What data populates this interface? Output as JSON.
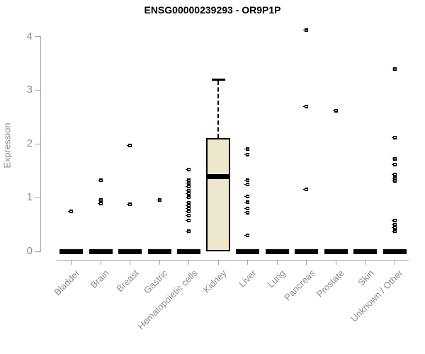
{
  "chart_data": {
    "type": "boxplot-scatter",
    "title": "ENSG00000239293 - OR9P1P",
    "ylabel": "Expression",
    "ylim": [
      0,
      4
    ],
    "yticks": [
      "0",
      "1",
      "2",
      "3",
      "4"
    ],
    "grid": false,
    "legend": false,
    "categories": [
      "Bladder",
      "Brain",
      "Breast",
      "Gastric",
      "Hematopoietic cells",
      "Kidney",
      "Liver",
      "Lung",
      "Pancreas",
      "Prostate",
      "Skin",
      "Unknown / Other"
    ],
    "series": [
      {
        "category": "Bladder",
        "box": {
          "q1": 0,
          "median": 0,
          "q3": 0
        },
        "points": [
          0.75
        ]
      },
      {
        "category": "Brain",
        "box": {
          "q1": 0,
          "median": 0,
          "q3": 0
        },
        "points": [
          1.33,
          0.95,
          0.89
        ]
      },
      {
        "category": "Breast",
        "box": {
          "q1": 0,
          "median": 0,
          "q3": 0
        },
        "points": [
          1.97,
          0.88
        ]
      },
      {
        "category": "Gastric",
        "box": {
          "q1": 0,
          "median": 0,
          "q3": 0
        },
        "points": [
          0.96
        ]
      },
      {
        "category": "Hematopoietic cells",
        "box": {
          "q1": 0,
          "median": 0,
          "q3": 0
        },
        "points": [
          1.52,
          1.33,
          1.27,
          1.21,
          1.13,
          1.07,
          1.01,
          0.9,
          0.85,
          0.8,
          0.75,
          0.66,
          0.58,
          0.38
        ]
      },
      {
        "category": "Kidney",
        "box": {
          "q1": 0,
          "median": 1.39,
          "q3": 2.11,
          "whisker_high": 3.22
        },
        "points": []
      },
      {
        "category": "Liver",
        "box": {
          "q1": 0,
          "median": 0,
          "q3": 0
        },
        "points": [
          1.9,
          1.8,
          1.33,
          1.24,
          1.02,
          0.91,
          0.8,
          0.72,
          0.3
        ]
      },
      {
        "category": "Lung",
        "box": {
          "q1": 0,
          "median": 0,
          "q3": 0
        },
        "points": []
      },
      {
        "category": "Pancreas",
        "box": {
          "q1": 0,
          "median": 0,
          "q3": 0
        },
        "points": [
          4.12,
          2.69,
          1.15
        ]
      },
      {
        "category": "Prostate",
        "box": {
          "q1": 0,
          "median": 0,
          "q3": 0
        },
        "points": [
          2.62
        ]
      },
      {
        "category": "Skin",
        "box": {
          "q1": 0,
          "median": 0,
          "q3": 0
        },
        "points": []
      },
      {
        "category": "Unknown / Other",
        "box": {
          "q1": 0,
          "median": 0,
          "q3": 0
        },
        "points": [
          3.39,
          2.11,
          1.72,
          1.61,
          1.43,
          1.37,
          1.31,
          0.57,
          0.5,
          0.44,
          0.37
        ]
      }
    ],
    "colors": {
      "box_fill": "#ece7cd",
      "box_border": "#000000",
      "median": "#000000",
      "point": "#000000",
      "axis": "#a3a3a3",
      "tick_label": "#8c8c8c",
      "title": "#000000",
      "background": "#ffffff"
    }
  }
}
